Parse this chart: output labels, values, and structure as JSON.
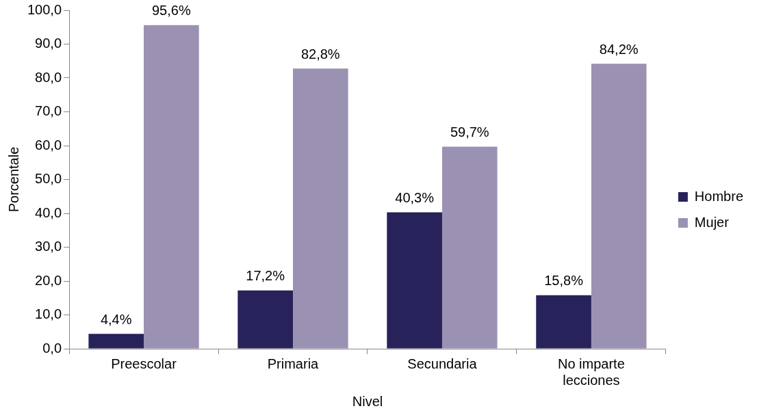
{
  "chart_data": {
    "type": "bar",
    "xlabel": "Nivel",
    "ylabel": "Porcentale",
    "categories": [
      "Preescolar",
      "Primaria",
      "Secundaria",
      "No imparte lecciones"
    ],
    "series": [
      {
        "name": "Hombre",
        "color": "#28225a",
        "values": [
          4.4,
          17.2,
          40.3,
          15.8
        ],
        "value_labels": [
          "4,4%",
          "17,2%",
          "40,3%",
          "15,8%"
        ]
      },
      {
        "name": "Mujer",
        "color": "#9b91b3",
        "values": [
          95.6,
          82.8,
          59.7,
          84.2
        ],
        "value_labels": [
          "95,6%",
          "82,8%",
          "59,7%",
          "84,2%"
        ]
      }
    ],
    "ylim": [
      0,
      100
    ],
    "yticks": [
      {
        "value": 0,
        "label": "0,0"
      },
      {
        "value": 10,
        "label": "10,0"
      },
      {
        "value": 20,
        "label": "20,0"
      },
      {
        "value": 30,
        "label": "30,0"
      },
      {
        "value": 40,
        "label": "40,0"
      },
      {
        "value": 50,
        "label": "50,0"
      },
      {
        "value": 60,
        "label": "60,0"
      },
      {
        "value": 70,
        "label": "70,0"
      },
      {
        "value": 80,
        "label": "80,0"
      },
      {
        "value": 90,
        "label": "90,0"
      },
      {
        "value": 100,
        "label": "100,0"
      }
    ],
    "grid": false,
    "legend": "right"
  }
}
